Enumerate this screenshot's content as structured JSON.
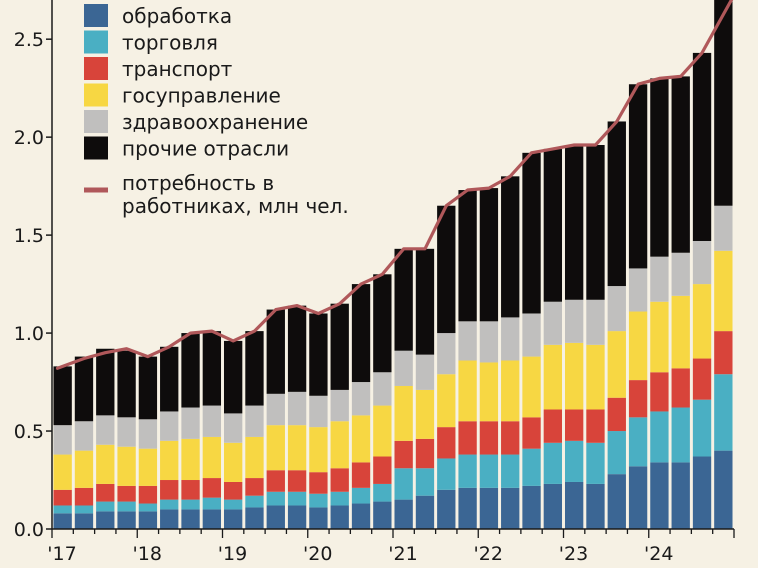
{
  "chart_data": {
    "type": "bar",
    "stacked": true,
    "x": [
      "2017Q1",
      "2017Q2",
      "2017Q3",
      "2017Q4",
      "2018Q1",
      "2018Q2",
      "2018Q3",
      "2018Q4",
      "2019Q1",
      "2019Q2",
      "2019Q3",
      "2019Q4",
      "2020Q1",
      "2020Q2",
      "2020Q3",
      "2020Q4",
      "2021Q1",
      "2021Q2",
      "2021Q3",
      "2021Q4",
      "2022Q1",
      "2022Q2",
      "2022Q3",
      "2022Q4",
      "2023Q1",
      "2023Q2",
      "2023Q3",
      "2023Q4",
      "2024Q1",
      "2024Q2",
      "2024Q3",
      "2024Q4"
    ],
    "x_tick_labels": [
      {
        "index": 0,
        "label": "'17"
      },
      {
        "index": 4,
        "label": "'18"
      },
      {
        "index": 8,
        "label": "'19"
      },
      {
        "index": 12,
        "label": "'20"
      },
      {
        "index": 16,
        "label": "'21"
      },
      {
        "index": 20,
        "label": "'22"
      },
      {
        "index": 24,
        "label": "'23"
      },
      {
        "index": 28,
        "label": "'24"
      }
    ],
    "yticks": [
      "0.0",
      "0.5",
      "1.0",
      "1.5",
      "2.0",
      "2.5"
    ],
    "ylim": [
      0,
      2.7
    ],
    "grid": false,
    "legend_position": "top-left",
    "title": "",
    "xlabel": "",
    "ylabel": "",
    "series": [
      {
        "name": "обработка",
        "color": "#3b6694",
        "values": [
          0.08,
          0.08,
          0.09,
          0.09,
          0.09,
          0.1,
          0.1,
          0.1,
          0.1,
          0.11,
          0.12,
          0.12,
          0.11,
          0.12,
          0.13,
          0.14,
          0.15,
          0.17,
          0.2,
          0.21,
          0.21,
          0.21,
          0.22,
          0.23,
          0.24,
          0.23,
          0.28,
          0.32,
          0.34,
          0.34,
          0.37,
          0.4
        ]
      },
      {
        "name": "торговля",
        "color": "#4aafc3",
        "values": [
          0.04,
          0.04,
          0.05,
          0.05,
          0.04,
          0.05,
          0.05,
          0.06,
          0.05,
          0.06,
          0.07,
          0.07,
          0.07,
          0.07,
          0.08,
          0.09,
          0.16,
          0.14,
          0.16,
          0.17,
          0.17,
          0.17,
          0.19,
          0.21,
          0.21,
          0.21,
          0.22,
          0.25,
          0.26,
          0.28,
          0.29,
          0.39
        ]
      },
      {
        "name": "транспорт",
        "color": "#d8443a",
        "values": [
          0.08,
          0.09,
          0.09,
          0.08,
          0.09,
          0.1,
          0.1,
          0.1,
          0.09,
          0.09,
          0.11,
          0.11,
          0.11,
          0.12,
          0.13,
          0.14,
          0.14,
          0.15,
          0.16,
          0.17,
          0.17,
          0.17,
          0.16,
          0.17,
          0.16,
          0.17,
          0.17,
          0.19,
          0.2,
          0.2,
          0.21,
          0.22
        ]
      },
      {
        "name": "госуправление",
        "color": "#f7d743",
        "values": [
          0.18,
          0.19,
          0.2,
          0.2,
          0.19,
          0.2,
          0.21,
          0.21,
          0.2,
          0.21,
          0.23,
          0.23,
          0.23,
          0.24,
          0.24,
          0.26,
          0.28,
          0.25,
          0.27,
          0.31,
          0.3,
          0.31,
          0.31,
          0.33,
          0.34,
          0.33,
          0.34,
          0.35,
          0.36,
          0.37,
          0.38,
          0.41
        ]
      },
      {
        "name": "здравоохранение",
        "color": "#c0bfbe",
        "values": [
          0.15,
          0.15,
          0.15,
          0.15,
          0.15,
          0.15,
          0.16,
          0.16,
          0.15,
          0.16,
          0.16,
          0.17,
          0.16,
          0.16,
          0.17,
          0.17,
          0.18,
          0.18,
          0.21,
          0.2,
          0.21,
          0.22,
          0.22,
          0.22,
          0.22,
          0.23,
          0.23,
          0.22,
          0.23,
          0.22,
          0.22,
          0.23
        ]
      },
      {
        "name": "прочие отрасли",
        "color": "#0e0c0c",
        "values": [
          0.3,
          0.33,
          0.34,
          0.34,
          0.32,
          0.33,
          0.38,
          0.38,
          0.37,
          0.38,
          0.43,
          0.44,
          0.42,
          0.44,
          0.5,
          0.5,
          0.52,
          0.54,
          0.65,
          0.67,
          0.68,
          0.72,
          0.82,
          0.78,
          0.79,
          0.79,
          0.84,
          0.94,
          0.91,
          0.9,
          0.96,
          1.06
        ]
      }
    ],
    "line": {
      "name": "потребность в работниках, млн чел.",
      "color": "#b0585a",
      "values": [
        0.82,
        0.87,
        0.9,
        0.92,
        0.88,
        0.93,
        1.0,
        1.01,
        0.96,
        1.01,
        1.12,
        1.14,
        1.1,
        1.15,
        1.25,
        1.3,
        1.43,
        1.43,
        1.65,
        1.73,
        1.74,
        1.8,
        1.92,
        1.94,
        1.96,
        1.96,
        2.08,
        2.27,
        2.3,
        2.31,
        2.43,
        2.71
      ]
    }
  }
}
